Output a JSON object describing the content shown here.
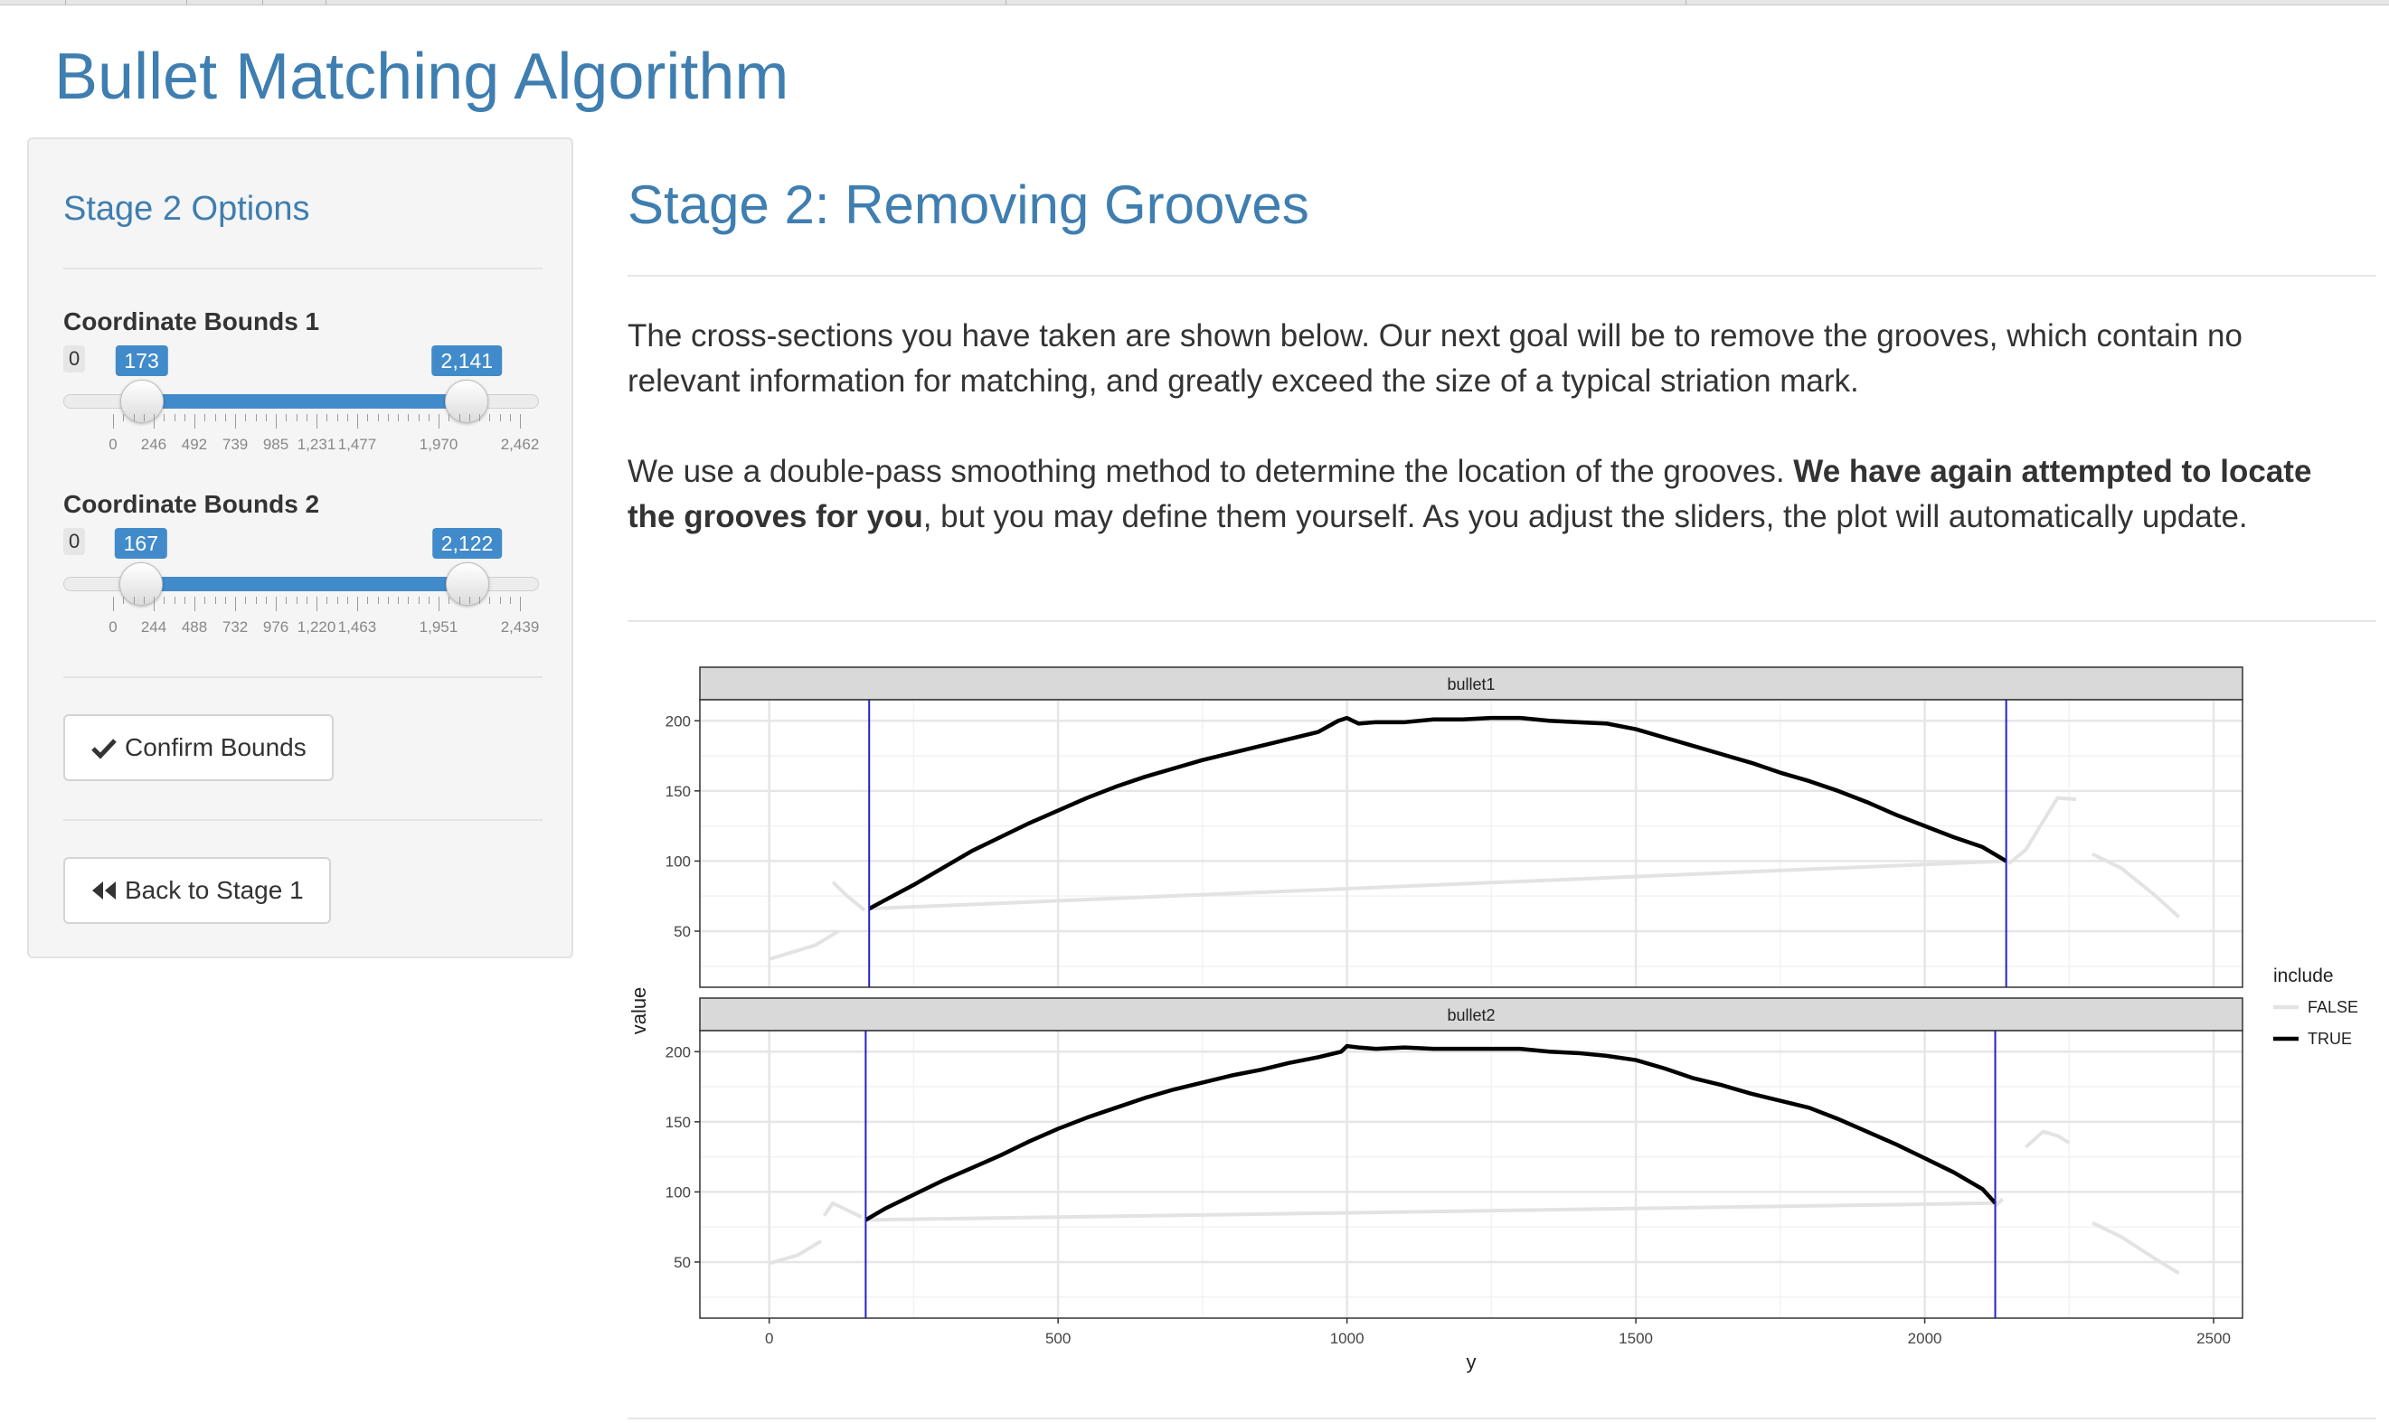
{
  "app_title": "Bullet Matching Algorithm",
  "sidebar": {
    "title": "Stage 2 Options",
    "sliders": [
      {
        "label": "Coordinate Bounds 1",
        "min": 0,
        "max": 2462,
        "min_label": "0",
        "low": 173,
        "high": 2141,
        "low_label": "173",
        "high_label": "2,141",
        "ticks": [
          0,
          246,
          492,
          739,
          985,
          1231,
          1477,
          1970,
          2462
        ],
        "tick_labels": [
          "0",
          "246",
          "492",
          "739",
          "985",
          "1,231",
          "1,477",
          "1,970",
          "2,462"
        ]
      },
      {
        "label": "Coordinate Bounds 2",
        "min": 0,
        "max": 2439,
        "min_label": "0",
        "low": 167,
        "high": 2122,
        "low_label": "167",
        "high_label": "2,122",
        "ticks": [
          0,
          244,
          488,
          732,
          976,
          1220,
          1463,
          1951,
          2439
        ],
        "tick_labels": [
          "0",
          "244",
          "488",
          "732",
          "976",
          "1,220",
          "1,463",
          "1,951",
          "2,439"
        ]
      }
    ],
    "confirm_label": "Confirm Bounds",
    "back_label": "Back to Stage 1",
    "confirm_icon": "check-icon",
    "back_icon": "backward-icon"
  },
  "main": {
    "title": "Stage 2: Removing Grooves",
    "para1": "The cross-sections you have taken are shown below. Our next goal will be to remove the grooves, which contain no relevant information for matching, and greatly exceed the size of a typical striation mark.",
    "para2_a": "We use a double-pass smoothing method to determine the location of the grooves. ",
    "para2_bold": "We have again attempted to locate the grooves for you",
    "para2_b": ", but you may define them yourself. As you adjust the sliders, the plot will automatically update."
  },
  "colors": {
    "accent": "#428bca",
    "title": "#3f7eb0",
    "line_true": "#000000",
    "line_false": "#e3e3e3",
    "bound_line": "#2222cc"
  },
  "chart_data": {
    "type": "line",
    "xlabel": "y",
    "ylabel": "value",
    "xlim": [
      -120,
      2550
    ],
    "ylim": [
      10,
      215
    ],
    "x_ticks": [
      0,
      500,
      1000,
      1500,
      2000,
      2500
    ],
    "y_ticks": [
      50,
      100,
      150,
      200
    ],
    "legend": {
      "title": "include",
      "entries": [
        "FALSE",
        "TRUE"
      ],
      "position": "right"
    },
    "panels": [
      {
        "strip": "bullet1",
        "bounds": [
          173,
          2141
        ],
        "false_segments": [
          [
            [
              0,
              30
            ],
            [
              80,
              40
            ],
            [
              120,
              50
            ]
          ],
          [
            [
              110,
              85
            ],
            [
              135,
              75
            ],
            [
              165,
              65
            ]
          ],
          [
            [
              173,
              66
            ],
            [
              2141,
              100
            ]
          ],
          [
            [
              2145,
              98
            ],
            [
              2175,
              108
            ],
            [
              2200,
              125
            ],
            [
              2230,
              145
            ],
            [
              2262,
              144
            ]
          ],
          [
            [
              2290,
              105
            ],
            [
              2340,
              95
            ],
            [
              2400,
              75
            ],
            [
              2440,
              60
            ]
          ]
        ],
        "true_segment": [
          [
            173,
            66
          ],
          [
            200,
            72
          ],
          [
            250,
            83
          ],
          [
            300,
            95
          ],
          [
            350,
            107
          ],
          [
            400,
            117
          ],
          [
            450,
            127
          ],
          [
            500,
            136
          ],
          [
            550,
            145
          ],
          [
            600,
            153
          ],
          [
            650,
            160
          ],
          [
            700,
            166
          ],
          [
            750,
            172
          ],
          [
            800,
            177
          ],
          [
            850,
            182
          ],
          [
            900,
            187
          ],
          [
            950,
            192
          ],
          [
            985,
            200
          ],
          [
            1000,
            202
          ],
          [
            1020,
            198
          ],
          [
            1050,
            199
          ],
          [
            1100,
            199
          ],
          [
            1150,
            201
          ],
          [
            1200,
            201
          ],
          [
            1250,
            202
          ],
          [
            1300,
            202
          ],
          [
            1350,
            200
          ],
          [
            1400,
            199
          ],
          [
            1450,
            198
          ],
          [
            1500,
            194
          ],
          [
            1550,
            188
          ],
          [
            1600,
            182
          ],
          [
            1650,
            176
          ],
          [
            1700,
            170
          ],
          [
            1750,
            163
          ],
          [
            1800,
            157
          ],
          [
            1850,
            150
          ],
          [
            1900,
            142
          ],
          [
            1950,
            133
          ],
          [
            2000,
            125
          ],
          [
            2050,
            117
          ],
          [
            2100,
            110
          ],
          [
            2141,
            100
          ]
        ]
      },
      {
        "strip": "bullet2",
        "bounds": [
          167,
          2122
        ],
        "false_segments": [
          [
            [
              0,
              49
            ],
            [
              50,
              55
            ],
            [
              90,
              65
            ]
          ],
          [
            [
              95,
              83
            ],
            [
              110,
              92
            ],
            [
              130,
              88
            ],
            [
              160,
              82
            ]
          ],
          [
            [
              167,
              80
            ],
            [
              2122,
              92
            ]
          ],
          [
            [
              2122,
              90
            ],
            [
              2135,
              95
            ]
          ],
          [
            [
              2175,
              132
            ],
            [
              2205,
              143
            ],
            [
              2230,
              140
            ],
            [
              2250,
              135
            ]
          ],
          [
            [
              2290,
              78
            ],
            [
              2340,
              68
            ],
            [
              2400,
              52
            ],
            [
              2440,
              42
            ]
          ]
        ],
        "true_segment": [
          [
            167,
            80
          ],
          [
            200,
            88
          ],
          [
            250,
            98
          ],
          [
            300,
            108
          ],
          [
            350,
            117
          ],
          [
            400,
            126
          ],
          [
            450,
            136
          ],
          [
            500,
            145
          ],
          [
            550,
            153
          ],
          [
            600,
            160
          ],
          [
            650,
            167
          ],
          [
            700,
            173
          ],
          [
            750,
            178
          ],
          [
            800,
            183
          ],
          [
            850,
            187
          ],
          [
            900,
            192
          ],
          [
            950,
            196
          ],
          [
            990,
            200
          ],
          [
            1000,
            204
          ],
          [
            1020,
            203
          ],
          [
            1050,
            202
          ],
          [
            1100,
            203
          ],
          [
            1150,
            202
          ],
          [
            1200,
            202
          ],
          [
            1250,
            202
          ],
          [
            1300,
            202
          ],
          [
            1350,
            200
          ],
          [
            1400,
            199
          ],
          [
            1450,
            197
          ],
          [
            1500,
            194
          ],
          [
            1550,
            188
          ],
          [
            1600,
            181
          ],
          [
            1650,
            176
          ],
          [
            1700,
            170
          ],
          [
            1750,
            165
          ],
          [
            1800,
            160
          ],
          [
            1850,
            152
          ],
          [
            1900,
            143
          ],
          [
            1950,
            134
          ],
          [
            2000,
            124
          ],
          [
            2050,
            114
          ],
          [
            2100,
            102
          ],
          [
            2122,
            92
          ]
        ]
      }
    ]
  }
}
